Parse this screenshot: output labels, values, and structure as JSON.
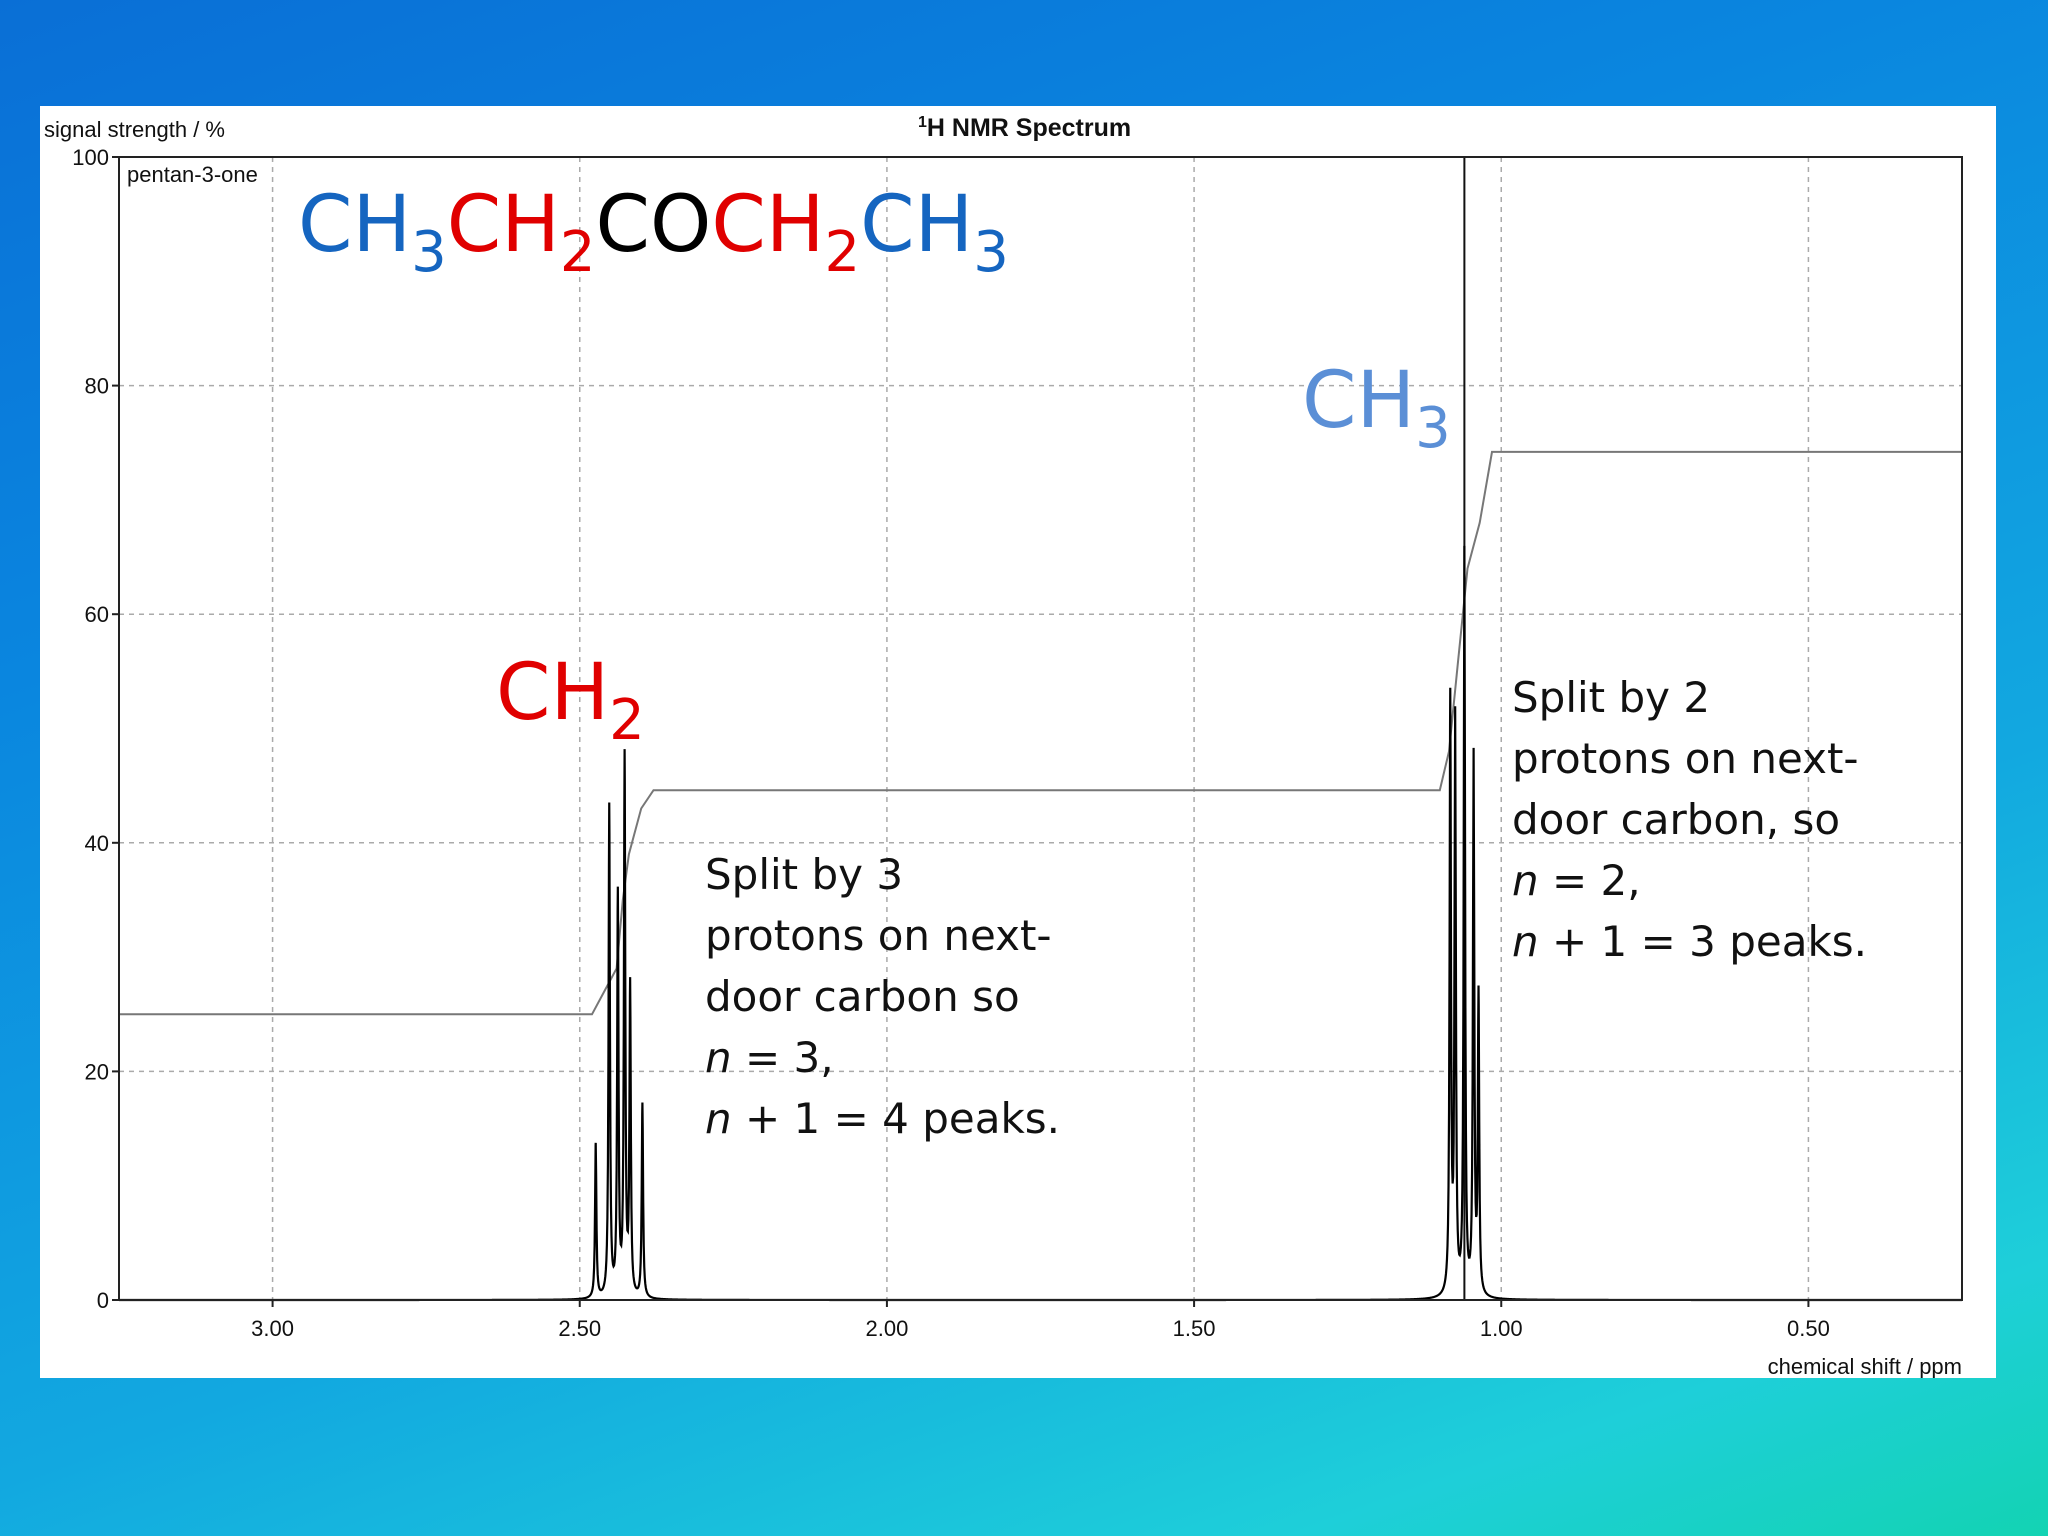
{
  "chart_data": {
    "type": "line",
    "title_sup": "1",
    "title": "H NMR Spectrum",
    "compound_label": "pentan-3-one",
    "ylabel": "signal strength / %",
    "xlabel": "chemical shift / ppm",
    "xlim": [
      3.25,
      0.25
    ],
    "ylim": [
      0,
      100
    ],
    "x_ticks": [
      {
        "value": 3.0,
        "label": "3.00"
      },
      {
        "value": 2.5,
        "label": "2.50"
      },
      {
        "value": 2.0,
        "label": "2.00"
      },
      {
        "value": 1.5,
        "label": "1.50"
      },
      {
        "value": 1.0,
        "label": "1.00"
      },
      {
        "value": 0.5,
        "label": "0.50"
      }
    ],
    "y_ticks": [
      {
        "value": 0,
        "label": "0"
      },
      {
        "value": 20,
        "label": "20"
      },
      {
        "value": 40,
        "label": "40"
      },
      {
        "value": 60,
        "label": "60"
      },
      {
        "value": 80,
        "label": "80"
      },
      {
        "value": 100,
        "label": "100"
      }
    ],
    "grid": true,
    "reference_line_x": 1.06,
    "peaks": [
      {
        "x": 2.474,
        "y": 13.5
      },
      {
        "x": 2.452,
        "y": 43
      },
      {
        "x": 2.438,
        "y": 35
      },
      {
        "x": 2.427,
        "y": 47
      },
      {
        "x": 2.418,
        "y": 27
      },
      {
        "x": 2.398,
        "y": 17
      },
      {
        "x": 1.083,
        "y": 52
      },
      {
        "x": 1.075,
        "y": 50
      },
      {
        "x": 1.06,
        "y": 65
      },
      {
        "x": 1.045,
        "y": 47
      },
      {
        "x": 1.037,
        "y": 26
      }
    ],
    "integration": [
      {
        "x": 3.25,
        "y": 25
      },
      {
        "x": 2.48,
        "y": 25
      },
      {
        "x": 2.46,
        "y": 27
      },
      {
        "x": 2.44,
        "y": 29
      },
      {
        "x": 2.43,
        "y": 35
      },
      {
        "x": 2.42,
        "y": 39
      },
      {
        "x": 2.4,
        "y": 43
      },
      {
        "x": 2.38,
        "y": 44.6
      },
      {
        "x": 1.1,
        "y": 44.6
      },
      {
        "x": 1.085,
        "y": 48
      },
      {
        "x": 1.07,
        "y": 56
      },
      {
        "x": 1.055,
        "y": 64
      },
      {
        "x": 1.035,
        "y": 68
      },
      {
        "x": 1.015,
        "y": 74.2
      },
      {
        "x": 0.25,
        "y": 74.2
      }
    ]
  },
  "annotations": {
    "formula": [
      {
        "text": "CH",
        "sub": "3",
        "color": "#1565c0"
      },
      {
        "text": "CH",
        "sub": "2",
        "color": "#e00000"
      },
      {
        "text": "CO",
        "sub": "",
        "color": "#000000"
      },
      {
        "text": "CH",
        "sub": "2",
        "color": "#e00000"
      },
      {
        "text": "CH",
        "sub": "3",
        "color": "#1565c0"
      }
    ],
    "ch2_label": {
      "text": "CH",
      "sub": "2",
      "color": "#e00000"
    },
    "ch3_label": {
      "text": "CH",
      "sub": "3",
      "color": "#5b8fd6"
    },
    "ch2_note": {
      "line1": "Split by 3",
      "line2": "protons on next-",
      "line3": "door carbon so",
      "line4_var": "n",
      "line4_rest": " = 3,",
      "line5_var": "n",
      "line5_rest": " + 1 = 4 peaks."
    },
    "ch3_note": {
      "line1": "Split by 2",
      "line2": "protons on next-",
      "line3": "door carbon, so",
      "line4_var": "n",
      "line4_rest": " = 2,",
      "line5_var": "n",
      "line5_rest": " + 1 = 3 peaks."
    }
  }
}
